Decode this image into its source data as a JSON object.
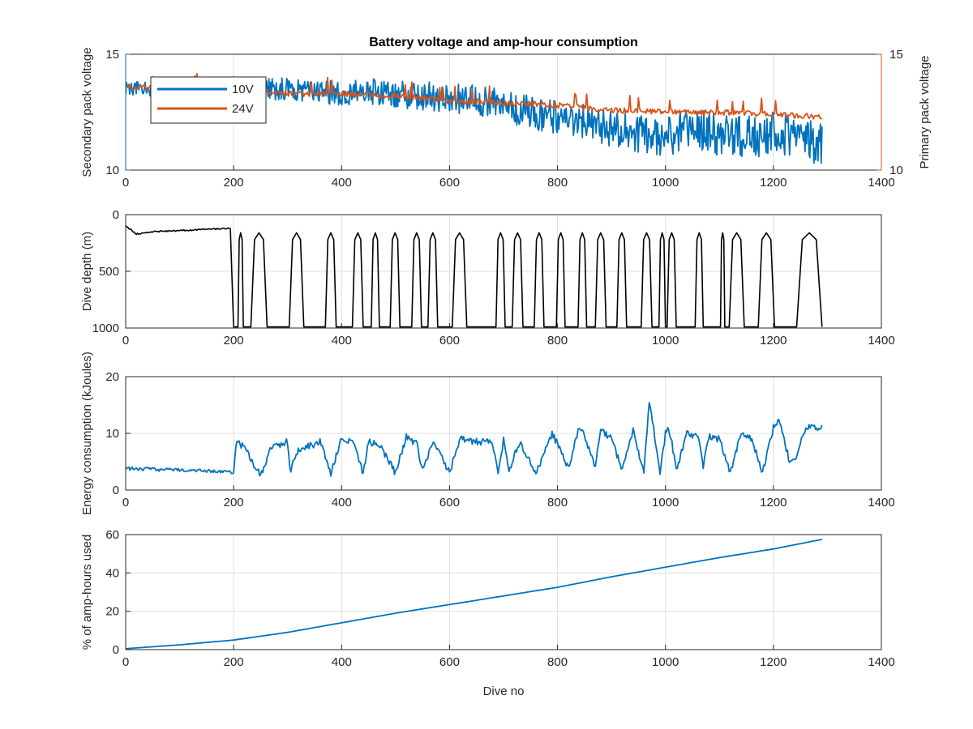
{
  "colors": {
    "blue": "#0072bd",
    "orange": "#d95319",
    "black": "#000000",
    "axis": "#262626",
    "grid": "#dfdfdf"
  },
  "chart_data": [
    {
      "type": "line",
      "title": "Battery voltage and amp-hour consumption",
      "xlabel": "",
      "ylabel": "Secondary pack voltage",
      "ylabel_right": "Primary pack voltage",
      "xlim": [
        0,
        1400
      ],
      "ylim": [
        10,
        15
      ],
      "ylim_right": [
        10,
        15
      ],
      "xticks": [
        "0",
        "200",
        "400",
        "600",
        "800",
        "1000",
        "1200",
        "1400"
      ],
      "yticks": [
        "10",
        "15"
      ],
      "yticks_right": [
        "10",
        "15"
      ],
      "grid": true,
      "legend": "top-left",
      "series": [
        {
          "name": "10V",
          "axis": "left",
          "color": "#0072bd",
          "x": [
            0,
            50,
            100,
            150,
            200,
            250,
            300,
            350,
            400,
            450,
            500,
            550,
            600,
            650,
            700,
            750,
            800,
            850,
            900,
            950,
            1000,
            1050,
            1100,
            1150,
            1200,
            1250,
            1290
          ],
          "y": [
            13.5,
            13.5,
            13.5,
            13.4,
            13.4,
            13.5,
            13.5,
            13.4,
            13.3,
            13.4,
            13.3,
            13.2,
            13.1,
            13.0,
            12.8,
            12.5,
            12.3,
            12.1,
            11.8,
            11.6,
            11.4,
            11.9,
            11.5,
            11.4,
            11.6,
            11.6,
            11.0
          ]
        },
        {
          "name": "24V",
          "axis": "right",
          "color": "#d95319",
          "x": [
            0,
            100,
            200,
            250,
            300,
            400,
            500,
            600,
            700,
            800,
            900,
            1000,
            1100,
            1200,
            1290
          ],
          "y": [
            13.6,
            13.5,
            13.4,
            13.4,
            13.3,
            13.3,
            13.2,
            13.0,
            12.9,
            12.8,
            12.6,
            12.5,
            12.5,
            12.4,
            12.3
          ]
        }
      ]
    },
    {
      "type": "line",
      "title": "",
      "xlabel": "",
      "ylabel": "Dive depth (m)",
      "xlim": [
        0,
        1400
      ],
      "ylim": [
        1000,
        0
      ],
      "yreverse": true,
      "xticks": [
        "0",
        "200",
        "400",
        "600",
        "800",
        "1000",
        "1200",
        "1400"
      ],
      "yticks": [
        "0",
        "500",
        "1000"
      ],
      "grid": true,
      "series": [
        {
          "color": "#000000",
          "shallow": {
            "x": [
              0,
              20,
              50,
              100,
              150,
              195
            ],
            "y": [
              100,
              170,
              150,
              140,
              130,
              120
            ]
          },
          "deep_depth": 990,
          "turn_depth": 160,
          "profiles": [
            [
              208,
              218
            ],
            [
              232,
              262
            ],
            [
              303,
              330
            ],
            [
              370,
              390
            ],
            [
              420,
              440
            ],
            [
              455,
              470
            ],
            [
              490,
              508
            ],
            [
              530,
              548
            ],
            [
              560,
              578
            ],
            [
              605,
              632
            ],
            [
              686,
              703
            ],
            [
              716,
              736
            ],
            [
              757,
              775
            ],
            [
              798,
              814
            ],
            [
              838,
              854
            ],
            [
              870,
              890
            ],
            [
              910,
              928
            ],
            [
              955,
              975
            ],
            [
              988,
              1000
            ],
            [
              1003,
              1020
            ],
            [
              1055,
              1070
            ],
            [
              1102,
              1110
            ],
            [
              1118,
              1146
            ],
            [
              1172,
              1202
            ],
            [
              1243,
              1290
            ]
          ]
        }
      ]
    },
    {
      "type": "line",
      "title": "",
      "xlabel": "",
      "ylabel": "Energy consumption (kJoules)",
      "xlim": [
        0,
        1400
      ],
      "ylim": [
        0,
        20
      ],
      "xticks": [
        "0",
        "200",
        "400",
        "600",
        "800",
        "1000",
        "1200",
        "1400"
      ],
      "yticks": [
        "0",
        "10",
        "20"
      ],
      "grid": true,
      "series": [
        {
          "color": "#0072bd",
          "x": [
            0,
            200,
            205,
            220,
            250,
            270,
            300,
            305,
            320,
            360,
            380,
            400,
            420,
            440,
            450,
            470,
            500,
            520,
            540,
            550,
            570,
            600,
            620,
            640,
            660,
            670,
            680,
            690,
            700,
            710,
            730,
            760,
            790,
            820,
            840,
            850,
            870,
            880,
            900,
            920,
            940,
            960,
            970,
            990,
            1000,
            1005,
            1010,
            1020,
            1040,
            1060,
            1070,
            1080,
            1100,
            1120,
            1140,
            1160,
            1180,
            1200,
            1210,
            1230,
            1240,
            1260,
            1290
          ],
          "y": [
            3.8,
            3.2,
            8.5,
            7.5,
            2.5,
            7.5,
            8.5,
            3.5,
            7.0,
            8.5,
            3.0,
            9.0,
            8.5,
            3.0,
            8.5,
            8.0,
            3.0,
            9.5,
            8.0,
            3.5,
            8.5,
            3.0,
            9.0,
            8.5,
            8.5,
            8.5,
            8.0,
            3.0,
            9.0,
            3.5,
            8.5,
            3.0,
            10.0,
            4.0,
            11.0,
            9.5,
            4.0,
            10.5,
            9.0,
            3.5,
            10.5,
            3.0,
            16.0,
            3.0,
            10.0,
            11.0,
            9.5,
            3.5,
            10.0,
            9.5,
            4.0,
            9.5,
            9.0,
            3.0,
            10.0,
            9.0,
            3.0,
            11.0,
            12.5,
            5.0,
            5.5,
            11.0,
            11.0
          ]
        }
      ]
    },
    {
      "type": "line",
      "title": "",
      "xlabel": "Dive no",
      "ylabel": "% of amp-hours used",
      "xlim": [
        0,
        1400
      ],
      "ylim": [
        0,
        60
      ],
      "xticks": [
        "0",
        "200",
        "400",
        "600",
        "800",
        "1000",
        "1200",
        "1400"
      ],
      "yticks": [
        "0",
        "20",
        "40",
        "60"
      ],
      "grid": true,
      "series": [
        {
          "color": "#0072bd",
          "x": [
            0,
            100,
            200,
            300,
            400,
            500,
            600,
            700,
            800,
            900,
            1000,
            1100,
            1200,
            1290
          ],
          "y": [
            0.5,
            2.5,
            5.0,
            9.0,
            14.0,
            19.0,
            23.5,
            28.0,
            32.5,
            38.0,
            43.0,
            48.0,
            52.5,
            57.5
          ]
        }
      ]
    }
  ]
}
